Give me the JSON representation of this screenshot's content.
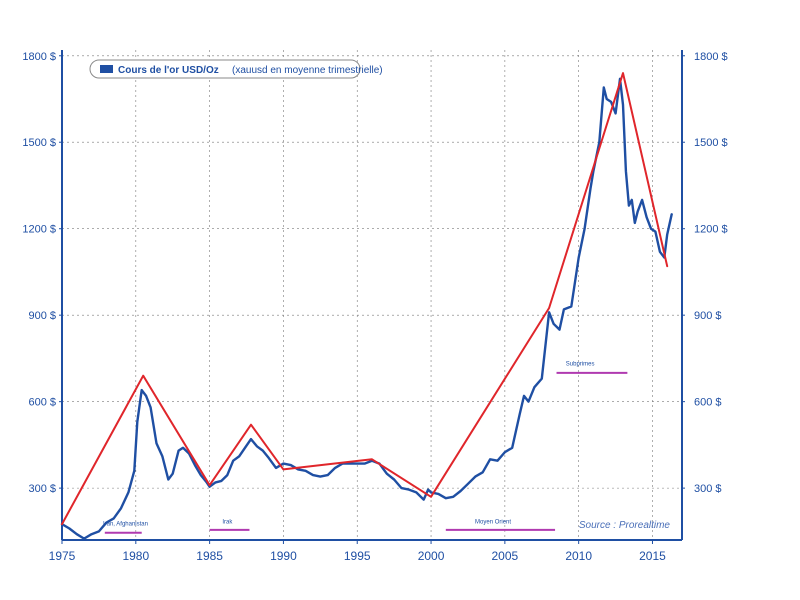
{
  "chart_data": {
    "type": "line",
    "x_ticks": [
      1975,
      1980,
      1985,
      1990,
      1995,
      2000,
      2005,
      2010,
      2015
    ],
    "xlim": [
      1975,
      2017
    ],
    "ylim": [
      120,
      1820
    ],
    "y_ticks_left": [
      "1800 $",
      "1500 $",
      "1200 $",
      "900 $",
      "600 $",
      "300 $"
    ],
    "y_ticks_right": [
      "1800 $",
      "1500 $",
      "1200 $",
      "900 $",
      "600 $",
      "300 $"
    ],
    "grid": "dashed-vertical-horizontal",
    "legend": {
      "bold_label": "Cours de l'or USD/Oz",
      "label": "(xauusd en moyenne trimestrielle)",
      "position": "top-left"
    },
    "series": [
      {
        "name": "Cours de l'or USD/Oz",
        "color": "#1f4fa3",
        "points": [
          [
            1975.0,
            175
          ],
          [
            1975.5,
            160
          ],
          [
            1976.0,
            140
          ],
          [
            1976.5,
            125
          ],
          [
            1977.0,
            140
          ],
          [
            1977.5,
            150
          ],
          [
            1978.0,
            180
          ],
          [
            1978.5,
            195
          ],
          [
            1979.0,
            230
          ],
          [
            1979.5,
            285
          ],
          [
            1979.9,
            360
          ],
          [
            1980.1,
            530
          ],
          [
            1980.4,
            640
          ],
          [
            1980.7,
            620
          ],
          [
            1981.0,
            580
          ],
          [
            1981.4,
            455
          ],
          [
            1981.8,
            410
          ],
          [
            1982.2,
            330
          ],
          [
            1982.5,
            350
          ],
          [
            1982.9,
            430
          ],
          [
            1983.2,
            440
          ],
          [
            1983.6,
            420
          ],
          [
            1984.0,
            380
          ],
          [
            1984.4,
            345
          ],
          [
            1984.8,
            320
          ],
          [
            1985.0,
            305
          ],
          [
            1985.4,
            320
          ],
          [
            1985.8,
            325
          ],
          [
            1986.2,
            345
          ],
          [
            1986.6,
            395
          ],
          [
            1987.0,
            410
          ],
          [
            1987.4,
            440
          ],
          [
            1987.8,
            470
          ],
          [
            1988.2,
            445
          ],
          [
            1988.6,
            430
          ],
          [
            1989.0,
            405
          ],
          [
            1989.5,
            370
          ],
          [
            1990.0,
            385
          ],
          [
            1990.5,
            380
          ],
          [
            1991.0,
            365
          ],
          [
            1991.5,
            360
          ],
          [
            1992.0,
            345
          ],
          [
            1992.5,
            340
          ],
          [
            1993.0,
            345
          ],
          [
            1993.5,
            370
          ],
          [
            1994.0,
            385
          ],
          [
            1994.5,
            385
          ],
          [
            1995.0,
            385
          ],
          [
            1995.5,
            385
          ],
          [
            1996.0,
            395
          ],
          [
            1996.5,
            385
          ],
          [
            1997.0,
            350
          ],
          [
            1997.5,
            330
          ],
          [
            1998.0,
            300
          ],
          [
            1998.5,
            295
          ],
          [
            1999.0,
            285
          ],
          [
            1999.5,
            260
          ],
          [
            1999.8,
            295
          ],
          [
            2000.0,
            285
          ],
          [
            2000.5,
            280
          ],
          [
            2001.0,
            265
          ],
          [
            2001.5,
            270
          ],
          [
            2002.0,
            290
          ],
          [
            2002.5,
            315
          ],
          [
            2003.0,
            340
          ],
          [
            2003.5,
            355
          ],
          [
            2004.0,
            400
          ],
          [
            2004.5,
            395
          ],
          [
            2005.0,
            425
          ],
          [
            2005.5,
            440
          ],
          [
            2006.0,
            555
          ],
          [
            2006.3,
            620
          ],
          [
            2006.6,
            600
          ],
          [
            2007.0,
            650
          ],
          [
            2007.5,
            680
          ],
          [
            2008.0,
            910
          ],
          [
            2008.3,
            870
          ],
          [
            2008.7,
            850
          ],
          [
            2009.0,
            920
          ],
          [
            2009.5,
            930
          ],
          [
            2010.0,
            1100
          ],
          [
            2010.4,
            1200
          ],
          [
            2010.8,
            1340
          ],
          [
            2011.0,
            1400
          ],
          [
            2011.4,
            1500
          ],
          [
            2011.7,
            1690
          ],
          [
            2011.9,
            1650
          ],
          [
            2012.2,
            1640
          ],
          [
            2012.5,
            1600
          ],
          [
            2012.8,
            1720
          ],
          [
            2013.0,
            1630
          ],
          [
            2013.2,
            1400
          ],
          [
            2013.4,
            1280
          ],
          [
            2013.6,
            1300
          ],
          [
            2013.8,
            1220
          ],
          [
            2014.0,
            1260
          ],
          [
            2014.3,
            1300
          ],
          [
            2014.6,
            1240
          ],
          [
            2014.9,
            1200
          ],
          [
            2015.2,
            1190
          ],
          [
            2015.5,
            1120
          ],
          [
            2015.8,
            1100
          ],
          [
            2016.0,
            1180
          ],
          [
            2016.3,
            1250
          ]
        ]
      },
      {
        "name": "trend",
        "color": "#e0262b",
        "points": [
          [
            1975.0,
            175
          ],
          [
            1980.5,
            690
          ],
          [
            1985.0,
            310
          ],
          [
            1987.8,
            520
          ],
          [
            1990.0,
            365
          ],
          [
            1996.0,
            400
          ],
          [
            2000.0,
            270
          ],
          [
            2008.0,
            925
          ],
          [
            2013.0,
            1740
          ],
          [
            2016.0,
            1070
          ]
        ]
      }
    ],
    "annotations": [
      {
        "label": "Iran, Afghanistan",
        "x": 1979.3,
        "y": 170,
        "bar": [
          1977.9,
          1980.4
        ],
        "bar_y": 145
      },
      {
        "label": "Irak",
        "x": 1986.2,
        "y": 178,
        "bar": [
          1985.0,
          1987.7
        ],
        "bar_y": 155
      },
      {
        "label": "Moyen Orient",
        "x": 2004.2,
        "y": 178,
        "bar": [
          2001.0,
          2008.4
        ],
        "bar_y": 155
      },
      {
        "label": "Subprimes",
        "x": 2010.1,
        "y": 725,
        "bar": [
          2008.5,
          2013.3
        ],
        "bar_y": 700
      }
    ],
    "source": "Source : Prorealtime",
    "colors": {
      "axis": "#1f4fa3",
      "grid": "#7a7a7a",
      "price": "#1f4fa3",
      "trend": "#e0262b",
      "event_bar": "#b03ab0"
    }
  }
}
